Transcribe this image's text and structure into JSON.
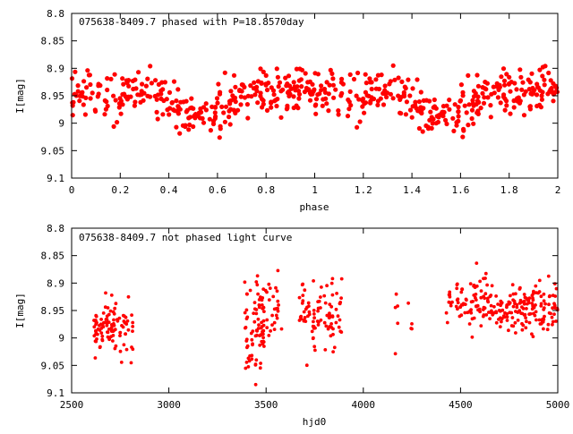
{
  "chart_data": [
    {
      "type": "scatter",
      "title": "075638-8409.7 phased with P=18.8570day",
      "xlabel": "phase",
      "ylabel": "I[mag]",
      "xlim": [
        0,
        2
      ],
      "ylim": [
        9.1,
        8.8
      ],
      "y_inverted": true,
      "grid": false,
      "marker": "filled-circle",
      "color": "#ff0000",
      "xticks": [
        "0",
        "0.2",
        "0.4",
        "0.6",
        "0.8",
        "1",
        "1.2",
        "1.4",
        "1.6",
        "1.8",
        "2"
      ],
      "yticks": [
        "8.8",
        "8.85",
        "8.9",
        "8.95",
        "9",
        "9.05",
        "9.1"
      ],
      "model": {
        "period_in_phase": 1,
        "mean_mag": 8.943,
        "dips": [
          {
            "center": 0.47,
            "width": 0.08,
            "depth": 0.035
          },
          {
            "center": 0.56,
            "width": 0.06,
            "depth": 0.045
          },
          {
            "center": 0.63,
            "width": 0.05,
            "depth": 0.02
          },
          {
            "center": 0.15,
            "width": 0.05,
            "depth": 0.012
          }
        ],
        "scatter_mag": 0.025
      }
    },
    {
      "type": "scatter",
      "title": "075638-8409.7 not phased light curve",
      "xlabel": "hjd0",
      "ylabel": "I[mag]",
      "xlim": [
        2500,
        5000
      ],
      "ylim": [
        9.1,
        8.8
      ],
      "y_inverted": true,
      "grid": false,
      "marker": "filled-circle",
      "color": "#ff0000",
      "xticks": [
        "2500",
        "3000",
        "3500",
        "4000",
        "4500",
        "5000"
      ],
      "yticks": [
        "8.8",
        "8.85",
        "8.9",
        "8.95",
        "9",
        "9.05",
        "9.1"
      ],
      "segments": [
        {
          "t_start": 2610,
          "t_end": 2720,
          "count": 70,
          "mean_mag": 8.975,
          "scatter_mag": 0.02
        },
        {
          "t_start": 2720,
          "t_end": 2820,
          "count": 35,
          "mean_mag": 8.985,
          "scatter_mag": 0.025
        },
        {
          "t_start": 3390,
          "t_end": 3500,
          "count": 80,
          "mean_mag": 8.98,
          "scatter_mag": 0.045
        },
        {
          "t_start": 3500,
          "t_end": 3580,
          "count": 25,
          "mean_mag": 8.95,
          "scatter_mag": 0.03
        },
        {
          "t_start": 3670,
          "t_end": 3890,
          "count": 90,
          "mean_mag": 8.955,
          "scatter_mag": 0.03
        },
        {
          "t_start": 4160,
          "t_end": 4180,
          "count": 5,
          "mean_mag": 8.98,
          "scatter_mag": 0.03
        },
        {
          "t_start": 4230,
          "t_end": 4250,
          "count": 4,
          "mean_mag": 8.96,
          "scatter_mag": 0.02
        },
        {
          "t_start": 4420,
          "t_end": 4650,
          "count": 80,
          "mean_mag": 8.935,
          "scatter_mag": 0.025
        },
        {
          "t_start": 4650,
          "t_end": 5000,
          "count": 160,
          "mean_mag": 8.945,
          "scatter_mag": 0.022
        }
      ]
    }
  ]
}
